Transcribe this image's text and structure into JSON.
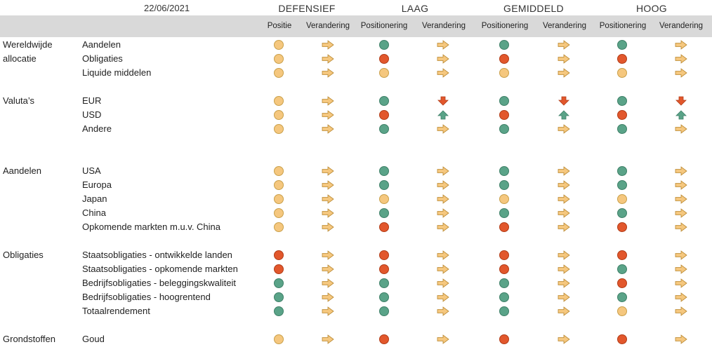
{
  "header": {
    "date": "22/06/2021",
    "groups": [
      "DEFENSIEF",
      "LAAG",
      "GEMIDDELD",
      "HOOG"
    ],
    "columns": [
      "Positie",
      "Verandering",
      "Positionering",
      "Verandering",
      "Positionering",
      "Verandering",
      "Positionering",
      "Verandering"
    ]
  },
  "colors": {
    "neutral": "#f5c77e",
    "positive": "#5aa388",
    "negative": "#e2572c"
  },
  "legend_codes": {
    "Y": "neutral",
    "G": "positive",
    "R": "negative",
    "r": "arrow-right",
    "u": "arrow-up",
    "d": "arrow-down"
  },
  "rows": [
    {
      "category": "Wereldwijde",
      "label": "Aandelen",
      "cells": [
        "Y",
        "r",
        "G",
        "r",
        "G",
        "r",
        "G",
        "r"
      ]
    },
    {
      "category": "allocatie",
      "label": "Obligaties",
      "cells": [
        "Y",
        "r",
        "R",
        "r",
        "R",
        "r",
        "R",
        "r"
      ]
    },
    {
      "category": "",
      "label": "Liquide middelen",
      "cells": [
        "Y",
        "r",
        "Y",
        "r",
        "Y",
        "r",
        "Y",
        "r"
      ]
    },
    {
      "category": "Valuta’s",
      "label": "EUR",
      "cells": [
        "Y",
        "r",
        "G",
        "d",
        "G",
        "d",
        "G",
        "d"
      ]
    },
    {
      "category": "",
      "label": "USD",
      "cells": [
        "Y",
        "r",
        "R",
        "u",
        "R",
        "u",
        "R",
        "u"
      ]
    },
    {
      "category": "",
      "label": "Andere",
      "cells": [
        "Y",
        "r",
        "G",
        "r",
        "G",
        "r",
        "G",
        "r"
      ]
    },
    {
      "category": "Aandelen",
      "label": "USA",
      "cells": [
        "Y",
        "r",
        "G",
        "r",
        "G",
        "r",
        "G",
        "r"
      ]
    },
    {
      "category": "",
      "label": "Europa",
      "cells": [
        "Y",
        "r",
        "G",
        "r",
        "G",
        "r",
        "G",
        "r"
      ]
    },
    {
      "category": "",
      "label": "Japan",
      "cells": [
        "Y",
        "r",
        "Y",
        "r",
        "Y",
        "r",
        "Y",
        "r"
      ]
    },
    {
      "category": "",
      "label": "China",
      "cells": [
        "Y",
        "r",
        "G",
        "r",
        "G",
        "r",
        "G",
        "r"
      ]
    },
    {
      "category": "",
      "label": "Opkomende markten m.u.v. China",
      "cells": [
        "Y",
        "r",
        "R",
        "r",
        "R",
        "r",
        "R",
        "r"
      ]
    },
    {
      "category": "Obligaties",
      "label": "Staatsobligaties - ontwikkelde landen",
      "cells": [
        "R",
        "r",
        "R",
        "r",
        "R",
        "r",
        "R",
        "r"
      ]
    },
    {
      "category": "",
      "label": "Staatsobligaties - opkomende markten",
      "cells": [
        "R",
        "r",
        "R",
        "r",
        "R",
        "r",
        "G",
        "r"
      ]
    },
    {
      "category": "",
      "label": "Bedrijfsobligaties - beleggingskwaliteit",
      "cells": [
        "G",
        "r",
        "G",
        "r",
        "G",
        "r",
        "R",
        "r"
      ]
    },
    {
      "category": "",
      "label": "Bedrijfsobligaties - hoogrentend",
      "cells": [
        "G",
        "r",
        "G",
        "r",
        "G",
        "r",
        "G",
        "r"
      ]
    },
    {
      "category": "",
      "label": "Totaalrendement",
      "cells": [
        "G",
        "r",
        "G",
        "r",
        "G",
        "r",
        "Y",
        "r"
      ]
    },
    {
      "category": "Grondstoffen",
      "label": "Goud",
      "cells": [
        "Y",
        "r",
        "R",
        "r",
        "R",
        "r",
        "R",
        "r"
      ]
    }
  ]
}
